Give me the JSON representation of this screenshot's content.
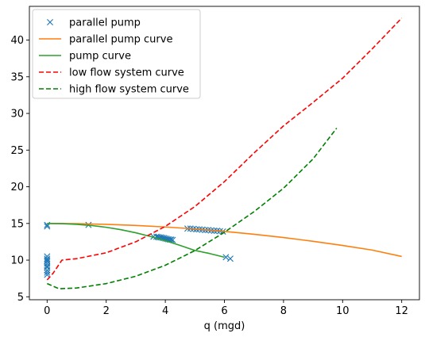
{
  "chart_data": {
    "type": "line",
    "title": "",
    "xlabel": "q (mgd)",
    "ylabel": "",
    "xlim": [
      -0.6,
      12.6
    ],
    "ylim": [
      4.6,
      44.6
    ],
    "xticks": [
      0,
      2,
      4,
      6,
      8,
      10,
      12
    ],
    "yticks": [
      5,
      10,
      15,
      20,
      25,
      30,
      35,
      40
    ],
    "grid": false,
    "legend_position": "top-left",
    "series": [
      {
        "name": "parallel pump",
        "kind": "marker",
        "marker": "x",
        "color": "#1f77b4",
        "x": [
          0.0,
          0.0,
          0.0,
          0.0,
          0.0,
          0.0,
          0.0,
          0.0,
          0.0,
          0.0,
          0.0,
          0.0,
          1.4,
          3.6,
          3.7,
          3.75,
          3.8,
          3.85,
          3.9,
          3.95,
          4.0,
          4.05,
          4.1,
          4.15,
          4.2,
          4.25,
          4.75,
          4.85,
          4.95,
          5.05,
          5.15,
          5.25,
          5.35,
          5.45,
          5.55,
          5.65,
          5.75,
          5.85,
          5.95,
          6.05,
          6.2
        ],
        "y": [
          14.6,
          14.8,
          10.5,
          10.2,
          10.0,
          9.8,
          9.5,
          9.2,
          9.0,
          8.6,
          8.3,
          8.0,
          14.8,
          13.2,
          13.2,
          13.15,
          13.1,
          13.1,
          13.05,
          13.0,
          12.95,
          12.9,
          12.85,
          12.8,
          12.8,
          12.75,
          14.3,
          14.3,
          14.25,
          14.2,
          14.2,
          14.15,
          14.1,
          14.1,
          14.05,
          14.0,
          14.0,
          13.95,
          13.9,
          10.4,
          10.2
        ]
      },
      {
        "name": "parallel pump curve",
        "kind": "line",
        "color": "#ff7f0e",
        "dash": "solid",
        "x": [
          0,
          1,
          2,
          3,
          4,
          5,
          6,
          7,
          8,
          9,
          10,
          11,
          12
        ],
        "y": [
          15.0,
          14.97,
          14.88,
          14.73,
          14.52,
          14.25,
          13.92,
          13.53,
          13.08,
          12.57,
          12.0,
          11.37,
          10.5
        ]
      },
      {
        "name": "pump curve",
        "kind": "line",
        "color": "#2ca02c",
        "dash": "solid",
        "x": [
          0,
          0.5,
          1,
          1.5,
          2,
          2.5,
          3,
          3.5,
          4,
          4.5,
          5,
          5.5,
          6
        ],
        "y": [
          15.0,
          14.97,
          14.88,
          14.72,
          14.48,
          14.15,
          13.73,
          13.22,
          12.65,
          12.0,
          11.32,
          10.9,
          10.4
        ]
      },
      {
        "name": "low flow system curve",
        "kind": "line",
        "color": "#ff0000",
        "dash": "dashed",
        "x": [
          0,
          0.2,
          0.5,
          1,
          2,
          3,
          4,
          5,
          6,
          7,
          8,
          9,
          10,
          11,
          12
        ],
        "y": [
          7.3,
          8.2,
          10.0,
          10.2,
          11.0,
          12.5,
          14.6,
          17.3,
          20.7,
          24.6,
          28.3,
          31.5,
          34.8,
          38.8,
          43.0
        ]
      },
      {
        "name": "high flow system curve",
        "kind": "line",
        "color": "#008000",
        "dash": "dashed",
        "x": [
          0,
          0.4,
          1,
          2,
          3,
          4,
          5,
          6,
          7,
          8,
          9,
          9.8
        ],
        "y": [
          6.8,
          6.1,
          6.2,
          6.8,
          7.8,
          9.3,
          11.3,
          13.8,
          16.6,
          19.8,
          23.8,
          28.0
        ]
      }
    ]
  }
}
